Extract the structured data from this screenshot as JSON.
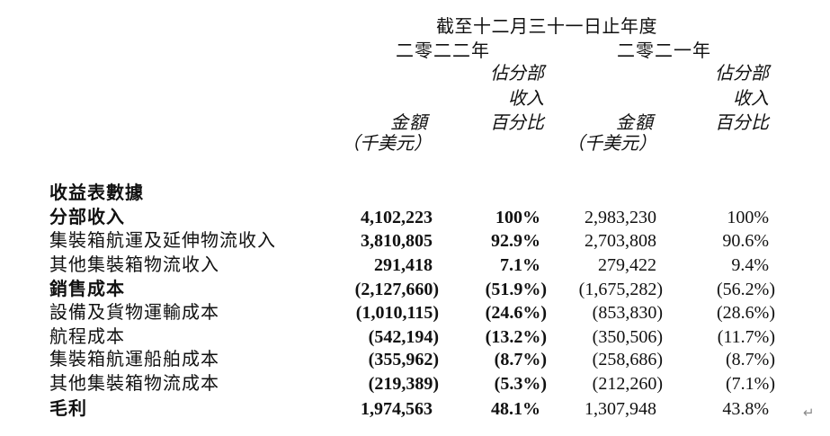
{
  "header": {
    "period": "截至十二月三十一日止年度",
    "year_2022": "二零二二年",
    "year_2021": "二零二一年",
    "amount_label": "金額",
    "unit_label": "（千美元）",
    "pct_line1": "佔分部",
    "pct_line2": "收入",
    "pct_line3": "百分比"
  },
  "section_title": "收益表數據",
  "rows": [
    {
      "label": "分部收入",
      "amount_2022": "4,102,223",
      "pct_2022": "100%",
      "amount_2021": "2,983,230",
      "pct_2021": "100%"
    },
    {
      "label": "集裝箱航運及延伸物流收入",
      "amount_2022": "3,810,805",
      "pct_2022": "92.9%",
      "amount_2021": "2,703,808",
      "pct_2021": "90.6%"
    },
    {
      "label": "其他集裝箱物流收入",
      "amount_2022": "291,418",
      "pct_2022": "7.1%",
      "amount_2021": "279,422",
      "pct_2021": "9.4%"
    },
    {
      "label": "銷售成本",
      "amount_2022": "(2,127,660)",
      "pct_2022": "(51.9%)",
      "amount_2021": "(1,675,282)",
      "pct_2021": "(56.2%)"
    },
    {
      "label": "設備及貨物運輸成本",
      "amount_2022": "(1,010,115)",
      "pct_2022": "(24.6%)",
      "amount_2021": "(853,830)",
      "pct_2021": "(28.6%)"
    },
    {
      "label": "航程成本",
      "amount_2022": "(542,194)",
      "pct_2022": "(13.2%)",
      "amount_2021": "(350,506)",
      "pct_2021": "(11.7%)"
    },
    {
      "label": "集裝箱航運船舶成本",
      "amount_2022": "(355,962)",
      "pct_2022": "(8.7%)",
      "amount_2021": "(258,686)",
      "pct_2021": "(8.7%)"
    },
    {
      "label": "其他集裝箱物流成本",
      "amount_2022": "(219,389)",
      "pct_2022": "(5.3%)",
      "amount_2021": "(212,260)",
      "pct_2021": "(7.1%)"
    },
    {
      "label": "毛利",
      "amount_2022": "1,974,563",
      "pct_2022": "48.1%",
      "amount_2021": "1,307,948",
      "pct_2021": "43.8%"
    }
  ],
  "return_mark": "↵"
}
